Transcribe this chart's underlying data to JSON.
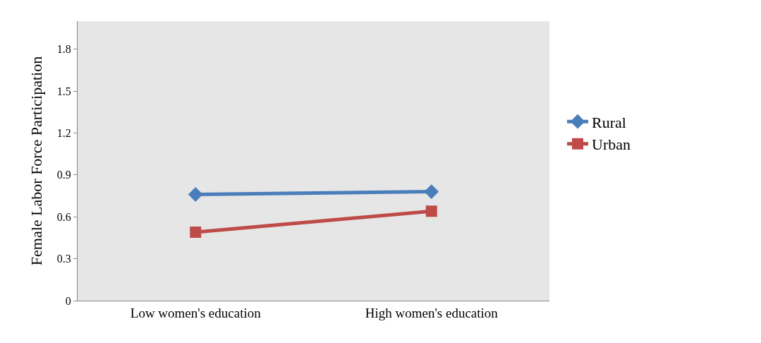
{
  "chart_data": {
    "type": "line",
    "ylabel": "Female Labor Force Participation",
    "categories": [
      "Low women's education",
      "High women's education"
    ],
    "series": [
      {
        "name": "Rural",
        "color": "#4a7ebb",
        "marker": "diamond",
        "values": [
          0.76,
          0.78
        ]
      },
      {
        "name": "Urban",
        "color": "#be4b48",
        "marker": "square",
        "values": [
          0.49,
          0.64
        ]
      }
    ],
    "ylim": [
      0,
      2.0
    ],
    "yticks": [
      0,
      0.3,
      0.6,
      0.9,
      1.2,
      1.5,
      1.8
    ],
    "grid": false,
    "legend": "right"
  }
}
